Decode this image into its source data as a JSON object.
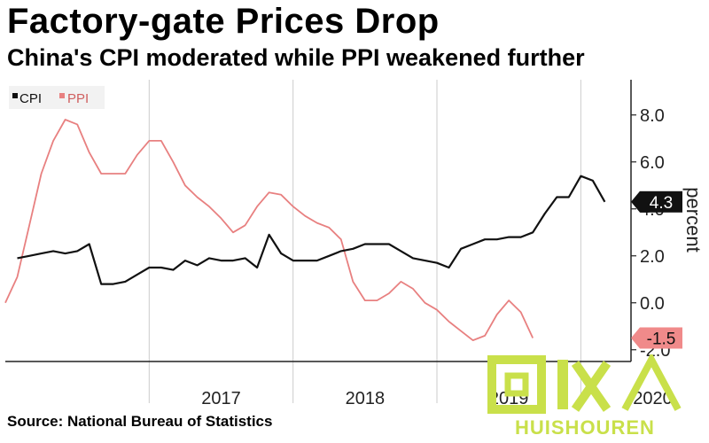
{
  "header": {
    "title": "Factory-gate Prices Drop",
    "subtitle": "China's CPI moderated while PPI weakened further"
  },
  "footer": {
    "source": "Source: National Bureau of Statistics"
  },
  "watermark": {
    "text": "HUISHOUREN"
  },
  "chart_data": {
    "type": "line",
    "ylabel": "percent",
    "ylim": [
      -2.5,
      9.5
    ],
    "yticks": [
      "8.0",
      "6.0",
      "4.0",
      "2.0",
      "0.0",
      "-2.0"
    ],
    "xtick_labels": [
      "2017",
      "2018",
      "2019",
      "2020"
    ],
    "legend": [
      "CPI",
      "PPI"
    ],
    "legend_position": "top-left",
    "series": [
      {
        "name": "CPI",
        "color": "#111111",
        "values": [
          [
            "2016-02",
            1.9
          ],
          [
            "2016-03",
            2.0
          ],
          [
            "2016-04",
            2.1
          ],
          [
            "2016-05",
            2.2
          ],
          [
            "2016-06",
            2.1
          ],
          [
            "2016-07",
            2.2
          ],
          [
            "2016-08",
            2.5
          ],
          [
            "2016-09",
            0.8
          ],
          [
            "2016-10",
            0.8
          ],
          [
            "2016-11",
            0.9
          ],
          [
            "2016-12",
            1.2
          ],
          [
            "2017-01",
            1.5
          ],
          [
            "2017-02",
            1.5
          ],
          [
            "2017-03",
            1.4
          ],
          [
            "2017-04",
            1.8
          ],
          [
            "2017-05",
            1.6
          ],
          [
            "2017-06",
            1.9
          ],
          [
            "2017-07",
            1.8
          ],
          [
            "2017-08",
            1.8
          ],
          [
            "2017-09",
            1.9
          ],
          [
            "2017-10",
            1.5
          ],
          [
            "2017-11",
            2.9
          ],
          [
            "2017-12",
            2.1
          ],
          [
            "2018-01",
            1.8
          ],
          [
            "2018-02",
            1.8
          ],
          [
            "2018-03",
            1.8
          ],
          [
            "2018-04",
            2.0
          ],
          [
            "2018-05",
            2.2
          ],
          [
            "2018-06",
            2.3
          ],
          [
            "2018-07",
            2.5
          ],
          [
            "2018-08",
            2.5
          ],
          [
            "2018-09",
            2.5
          ],
          [
            "2018-10",
            2.2
          ],
          [
            "2018-11",
            1.9
          ],
          [
            "2018-12",
            1.8
          ],
          [
            "2019-01",
            1.7
          ],
          [
            "2019-02",
            1.5
          ],
          [
            "2019-03",
            2.3
          ],
          [
            "2019-04",
            2.5
          ],
          [
            "2019-05",
            2.7
          ],
          [
            "2019-06",
            2.7
          ],
          [
            "2019-07",
            2.8
          ],
          [
            "2019-08",
            2.8
          ],
          [
            "2019-09",
            3.0
          ],
          [
            "2019-10",
            3.8
          ],
          [
            "2019-11",
            4.5
          ],
          [
            "2019-12",
            4.5
          ],
          [
            "2020-01",
            5.4
          ],
          [
            "2020-02",
            5.2
          ],
          [
            "2020-03",
            4.3
          ]
        ]
      },
      {
        "name": "PPI",
        "color": "#e88080",
        "values": [
          [
            "2016-01",
            0.0
          ],
          [
            "2016-02",
            1.1
          ],
          [
            "2016-03",
            3.3
          ],
          [
            "2016-04",
            5.5
          ],
          [
            "2016-05",
            6.9
          ],
          [
            "2016-06",
            7.8
          ],
          [
            "2016-07",
            7.6
          ],
          [
            "2016-08",
            6.4
          ],
          [
            "2016-09",
            5.5
          ],
          [
            "2016-10",
            5.5
          ],
          [
            "2016-11",
            5.5
          ],
          [
            "2016-12",
            6.3
          ],
          [
            "2017-01",
            6.9
          ],
          [
            "2017-02",
            6.9
          ],
          [
            "2017-03",
            6.0
          ],
          [
            "2017-04",
            5.0
          ],
          [
            "2017-05",
            4.5
          ],
          [
            "2017-06",
            4.1
          ],
          [
            "2017-07",
            3.6
          ],
          [
            "2017-08",
            3.0
          ],
          [
            "2017-09",
            3.3
          ],
          [
            "2017-10",
            4.1
          ],
          [
            "2017-11",
            4.7
          ],
          [
            "2017-12",
            4.6
          ],
          [
            "2018-01",
            4.1
          ],
          [
            "2018-02",
            3.7
          ],
          [
            "2018-03",
            3.4
          ],
          [
            "2018-04",
            3.2
          ],
          [
            "2018-05",
            2.7
          ],
          [
            "2018-06",
            0.9
          ],
          [
            "2018-07",
            0.1
          ],
          [
            "2018-08",
            0.1
          ],
          [
            "2018-09",
            0.4
          ],
          [
            "2018-10",
            0.9
          ],
          [
            "2018-11",
            0.6
          ],
          [
            "2018-12",
            0.0
          ],
          [
            "2019-01",
            -0.3
          ],
          [
            "2019-02",
            -0.8
          ],
          [
            "2019-03",
            -1.2
          ],
          [
            "2019-04",
            -1.6
          ],
          [
            "2019-05",
            -1.4
          ],
          [
            "2019-06",
            -0.5
          ],
          [
            "2019-07",
            0.1
          ],
          [
            "2019-08",
            -0.4
          ],
          [
            "2019-09",
            -1.5
          ]
        ]
      }
    ],
    "end_labels": [
      {
        "series": "CPI",
        "text": "4.3",
        "value": 4.3
      },
      {
        "series": "PPI",
        "text": "-1.5",
        "value": -1.5
      }
    ]
  }
}
